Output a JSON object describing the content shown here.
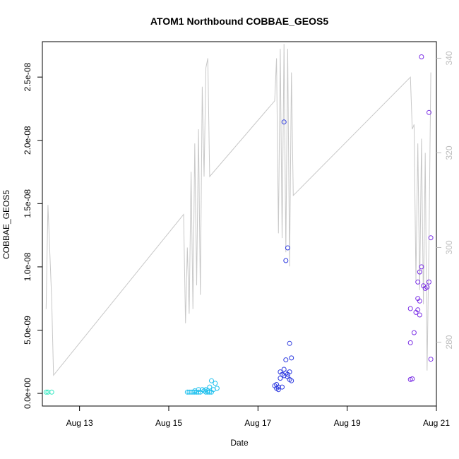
{
  "chart_data": {
    "type": "scatter",
    "title": "ATOM1 Northbound COBBAE_GEOS5",
    "xlabel": "Date",
    "ylabel": "COBBAE_GEOS5",
    "x_axis": {
      "type": "date",
      "range": [
        "2016-08-12T04:00",
        "2016-08-21T00:00"
      ],
      "ticks": [
        {
          "value": "2016-08-13",
          "label": "Aug 13"
        },
        {
          "value": "2016-08-15",
          "label": "Aug 15"
        },
        {
          "value": "2016-08-17",
          "label": "Aug 17"
        },
        {
          "value": "2016-08-19",
          "label": "Aug 19"
        },
        {
          "value": "2016-08-21",
          "label": "Aug 21"
        }
      ]
    },
    "y_axis": {
      "range": [
        -1e-09,
        2.78e-08
      ],
      "ticks": [
        {
          "value": 0,
          "label": "0.0e+00"
        },
        {
          "value": 5e-09,
          "label": "5.0e-09"
        },
        {
          "value": 1e-08,
          "label": "1.0e-08"
        },
        {
          "value": 1.5e-08,
          "label": "1.5e-08"
        },
        {
          "value": 2e-08,
          "label": "2.0e-08"
        },
        {
          "value": 2.5e-08,
          "label": "2.5e-08"
        }
      ]
    },
    "y2_axis": {
      "range": [
        266.5,
        343.5
      ],
      "color": "#bdbdbd",
      "ticks": [
        {
          "value": 280,
          "label": "280"
        },
        {
          "value": 300,
          "label": "300"
        },
        {
          "value": 320,
          "label": "320"
        },
        {
          "value": 340,
          "label": "340"
        }
      ]
    },
    "grid": false,
    "series": [
      {
        "type": "scatter",
        "color": "#2ee8c0",
        "points": [
          [
            "2016-08-12T06:00",
            1e-10
          ],
          [
            "2016-08-12T07:00",
            1e-10
          ],
          [
            "2016-08-12T09:00",
            1e-10
          ]
        ]
      },
      {
        "type": "scatter",
        "color": "#1ec0ee",
        "points": [
          [
            "2016-08-15T10:00",
            1e-10
          ],
          [
            "2016-08-15T11:00",
            1e-10
          ],
          [
            "2016-08-15T12:00",
            1e-10
          ],
          [
            "2016-08-15T13:00",
            1e-10
          ],
          [
            "2016-08-15T14:00",
            1e-10
          ],
          [
            "2016-08-15T15:00",
            1e-10
          ],
          [
            "2016-08-15T16:00",
            1e-10
          ],
          [
            "2016-08-15T17:00",
            1e-10
          ],
          [
            "2016-08-15T18:00",
            3e-10
          ],
          [
            "2016-08-15T19:00",
            2e-10
          ],
          [
            "2016-08-15T20:00",
            1e-10
          ],
          [
            "2016-08-15T21:00",
            2e-10
          ],
          [
            "2016-08-15T22:00",
            1e-10
          ],
          [
            "2016-08-15T23:00",
            1e-10
          ],
          [
            "2016-08-15T14:00",
            2e-10
          ],
          [
            "2016-08-15T16:00",
            3e-10
          ],
          [
            "2016-08-15T20:00",
            3e-10
          ],
          [
            "2016-08-15T22:00",
            5e-10
          ],
          [
            "2016-08-16T00:00",
            3e-10
          ],
          [
            "2016-08-15T21:00",
            1e-10
          ],
          [
            "2016-08-15T23:00",
            1e-09
          ],
          [
            "2016-08-16T01:00",
            8e-10
          ],
          [
            "2016-08-16T02:00",
            4e-10
          ]
        ]
      },
      {
        "type": "scatter",
        "color": "#2f3ce0",
        "points": [
          [
            "2016-08-17T09:00",
            6e-10
          ],
          [
            "2016-08-17T10:00",
            4e-10
          ],
          [
            "2016-08-17T10:00",
            7e-10
          ],
          [
            "2016-08-17T11:00",
            5e-10
          ],
          [
            "2016-08-17T11:00",
            3e-10
          ],
          [
            "2016-08-17T12:00",
            1.2e-09
          ],
          [
            "2016-08-17T12:00",
            1.7e-09
          ],
          [
            "2016-08-17T13:00",
            1.5e-09
          ],
          [
            "2016-08-17T13:00",
            5e-10
          ],
          [
            "2016-08-17T14:00",
            1.9e-09
          ],
          [
            "2016-08-17T14:00",
            1.4e-09
          ],
          [
            "2016-08-17T15:00",
            2.65e-09
          ],
          [
            "2016-08-17T15:00",
            1.6e-09
          ],
          [
            "2016-08-17T16:00",
            1.3e-09
          ],
          [
            "2016-08-17T16:00",
            1.5e-09
          ],
          [
            "2016-08-17T17:00",
            1.7e-09
          ],
          [
            "2016-08-17T17:00",
            1.1e-09
          ],
          [
            "2016-08-17T18:00",
            1e-09
          ],
          [
            "2016-08-17T18:00",
            2.8e-09
          ],
          [
            "2016-08-17T17:00",
            3.95e-09
          ],
          [
            "2016-08-17T14:00",
            2.145e-08
          ],
          [
            "2016-08-17T16:00",
            1.15e-08
          ],
          [
            "2016-08-17T15:00",
            1.05e-08
          ]
        ]
      },
      {
        "type": "scatter",
        "color": "#7b2fe6",
        "points": [
          [
            "2016-08-20T10:00",
            1.1e-09
          ],
          [
            "2016-08-20T11:00",
            1.15e-09
          ],
          [
            "2016-08-20T10:00",
            4e-09
          ],
          [
            "2016-08-20T12:00",
            4.8e-09
          ],
          [
            "2016-08-20T10:00",
            6.7e-09
          ],
          [
            "2016-08-20T13:00",
            6.4e-09
          ],
          [
            "2016-08-20T14:00",
            6.6e-09
          ],
          [
            "2016-08-20T15:00",
            6.2e-09
          ],
          [
            "2016-08-20T14:00",
            7.5e-09
          ],
          [
            "2016-08-20T15:00",
            7.3e-09
          ],
          [
            "2016-08-20T14:00",
            8.8e-09
          ],
          [
            "2016-08-20T15:00",
            9.6e-09
          ],
          [
            "2016-08-20T16:00",
            1e-08
          ],
          [
            "2016-08-20T17:00",
            8.5e-09
          ],
          [
            "2016-08-20T18:00",
            8.3e-09
          ],
          [
            "2016-08-20T19:00",
            8.4e-09
          ],
          [
            "2016-08-20T20:00",
            8.8e-09
          ],
          [
            "2016-08-20T21:00",
            1.23e-08
          ],
          [
            "2016-08-20T20:00",
            2.22e-08
          ],
          [
            "2016-08-20T16:00",
            2.66e-08
          ],
          [
            "2016-08-20T21:00",
            2.7e-09
          ]
        ]
      },
      {
        "type": "line",
        "axis": "y2",
        "color": "#c8c8c8",
        "points": [
          [
            "2016-08-12T06:00",
            287
          ],
          [
            "2016-08-12T07:00",
            309
          ],
          [
            "2016-08-12T09:00",
            289
          ],
          [
            "2016-08-12T10:00",
            273
          ],
          [
            "2016-08-15T08:00",
            307
          ],
          [
            "2016-08-15T09:00",
            284
          ],
          [
            "2016-08-15T10:00",
            300
          ],
          [
            "2016-08-15T11:00",
            286
          ],
          [
            "2016-08-15T12:00",
            316
          ],
          [
            "2016-08-15T13:00",
            287
          ],
          [
            "2016-08-15T14:00",
            322
          ],
          [
            "2016-08-15T15:00",
            292
          ],
          [
            "2016-08-15T16:00",
            325
          ],
          [
            "2016-08-15T17:00",
            290
          ],
          [
            "2016-08-15T18:00",
            334
          ],
          [
            "2016-08-15T19:00",
            315
          ],
          [
            "2016-08-15T20:00",
            338
          ],
          [
            "2016-08-15T21:00",
            340
          ],
          [
            "2016-08-15T22:00",
            315
          ],
          [
            "2016-08-17T09:00",
            331
          ],
          [
            "2016-08-17T10:00",
            340
          ],
          [
            "2016-08-17T11:00",
            303
          ],
          [
            "2016-08-17T12:00",
            342
          ],
          [
            "2016-08-17T13:00",
            302
          ],
          [
            "2016-08-17T14:00",
            343
          ],
          [
            "2016-08-17T15:00",
            299
          ],
          [
            "2016-08-17T16:00",
            342
          ],
          [
            "2016-08-17T17:00",
            296
          ],
          [
            "2016-08-17T18:00",
            337
          ],
          [
            "2016-08-17T19:00",
            311
          ],
          [
            "2016-08-20T10:00",
            336
          ],
          [
            "2016-08-20T11:00",
            325
          ],
          [
            "2016-08-20T12:00",
            326
          ],
          [
            "2016-08-20T13:00",
            293
          ],
          [
            "2016-08-20T14:00",
            322
          ],
          [
            "2016-08-20T15:00",
            291
          ],
          [
            "2016-08-20T16:00",
            323
          ],
          [
            "2016-08-20T17:00",
            288
          ],
          [
            "2016-08-20T18:00",
            320
          ],
          [
            "2016-08-20T19:00",
            274
          ],
          [
            "2016-08-20T20:00",
            301
          ],
          [
            "2016-08-20T21:00",
            337
          ]
        ]
      }
    ]
  }
}
